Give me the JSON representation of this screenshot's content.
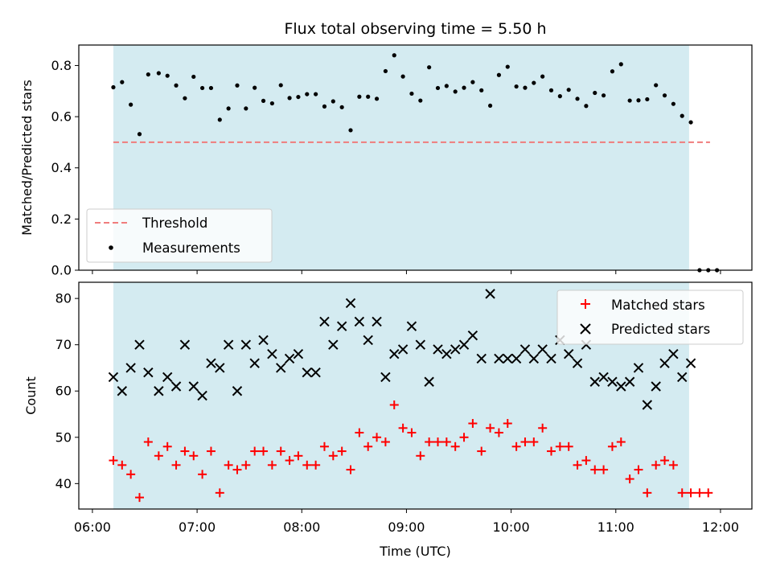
{
  "chart_data": [
    {
      "type": "scatter",
      "title": "Flux total observing time = 5.50 h",
      "xlabel": "",
      "ylabel": "Matched/Predicted stars",
      "ylim": [
        0.0,
        0.88
      ],
      "yticks": [
        "0.0",
        "0.2",
        "0.4",
        "0.6",
        "0.8"
      ],
      "ytick_values": [
        0.0,
        0.2,
        0.4,
        0.6,
        0.8
      ],
      "xlim_hours": [
        5.87,
        12.3
      ],
      "shaded_span_hours": [
        6.2,
        11.7
      ],
      "threshold": {
        "name": "Threshold",
        "value": 0.5,
        "x_range_hours": [
          6.2,
          11.9
        ],
        "color": "#f07c7c"
      },
      "series": [
        {
          "name": "Measurements",
          "color": "#000000",
          "x": [
            "06:12",
            "06:17",
            "06:22",
            "06:27",
            "06:32",
            "06:38",
            "06:43",
            "06:48",
            "06:53",
            "06:58",
            "07:03",
            "07:08",
            "07:13",
            "07:18",
            "07:23",
            "07:28",
            "07:33",
            "07:38",
            "07:43",
            "07:48",
            "07:53",
            "07:58",
            "08:03",
            "08:08",
            "08:13",
            "08:18",
            "08:23",
            "08:28",
            "08:33",
            "08:38",
            "08:43",
            "08:48",
            "08:53",
            "08:58",
            "09:03",
            "09:08",
            "09:13",
            "09:18",
            "09:23",
            "09:28",
            "09:33",
            "09:38",
            "09:43",
            "09:48",
            "09:53",
            "09:58",
            "10:03",
            "10:08",
            "10:13",
            "10:18",
            "10:23",
            "10:28",
            "10:33",
            "10:38",
            "10:43",
            "10:48",
            "10:53",
            "10:58",
            "11:03",
            "11:08",
            "11:13",
            "11:18",
            "11:23",
            "11:28",
            "11:33",
            "11:38",
            "11:43",
            "11:48",
            "11:53"
          ],
          "values": [
            0.715,
            0.735,
            0.647,
            0.532,
            0.765,
            0.77,
            0.76,
            0.722,
            0.672,
            0.756,
            0.712,
            0.712,
            0.588,
            0.632,
            0.722,
            0.632,
            0.713,
            0.662,
            0.652,
            0.723,
            0.673,
            0.677,
            0.688,
            0.688,
            0.64,
            0.66,
            0.637,
            0.547,
            0.678,
            0.678,
            0.67,
            0.778,
            0.84,
            0.757,
            0.69,
            0.663,
            0.793,
            0.712,
            0.72,
            0.698,
            0.713,
            0.735,
            0.703,
            0.643,
            0.763,
            0.795,
            0.718,
            0.713,
            0.732,
            0.757,
            0.703,
            0.68,
            0.705,
            0.67,
            0.642,
            0.693,
            0.683,
            0.777,
            0.805,
            0.663,
            0.664,
            0.668,
            0.723,
            0.683,
            0.65,
            0.603,
            0.578,
            0.0,
            0.0
          ]
        }
      ],
      "extra_points": {
        "x": [
          "11:58"
        ],
        "values": [
          0.0
        ]
      },
      "legend": {
        "position": "lower left",
        "entries": [
          "Threshold",
          "Measurements"
        ]
      }
    },
    {
      "type": "scatter",
      "title": "",
      "xlabel": "Time (UTC)",
      "ylabel": "Count",
      "ylim": [
        34.5,
        83.5
      ],
      "yticks": [
        "40",
        "50",
        "60",
        "70",
        "80"
      ],
      "ytick_values": [
        40,
        50,
        60,
        70,
        80
      ],
      "xticks": [
        "06:00",
        "07:00",
        "08:00",
        "09:00",
        "10:00",
        "11:00",
        "12:00"
      ],
      "xtick_hours": [
        6,
        7,
        8,
        9,
        10,
        11,
        12
      ],
      "xlim_hours": [
        5.87,
        12.3
      ],
      "shaded_span_hours": [
        6.2,
        11.7
      ],
      "series": [
        {
          "name": "Matched stars",
          "color": "#ff0000",
          "marker": "+",
          "x": [
            "06:12",
            "06:17",
            "06:22",
            "06:27",
            "06:32",
            "06:38",
            "06:43",
            "06:48",
            "06:53",
            "06:58",
            "07:03",
            "07:08",
            "07:13",
            "07:18",
            "07:23",
            "07:28",
            "07:33",
            "07:38",
            "07:43",
            "07:48",
            "07:53",
            "07:58",
            "08:03",
            "08:08",
            "08:13",
            "08:18",
            "08:23",
            "08:28",
            "08:33",
            "08:38",
            "08:43",
            "08:48",
            "08:53",
            "08:58",
            "09:03",
            "09:08",
            "09:13",
            "09:18",
            "09:23",
            "09:28",
            "09:33",
            "09:38",
            "09:43",
            "09:48",
            "09:53",
            "09:58",
            "10:03",
            "10:08",
            "10:13",
            "10:18",
            "10:23",
            "10:28",
            "10:33",
            "10:38",
            "10:43",
            "10:48",
            "10:53",
            "10:58",
            "11:03",
            "11:08",
            "11:13",
            "11:18",
            "11:23",
            "11:28",
            "11:33",
            "11:38",
            "11:43",
            "11:48",
            "11:53"
          ],
          "values": [
            45,
            44,
            42,
            37,
            49,
            46,
            48,
            44,
            47,
            46,
            42,
            47,
            38,
            44,
            43,
            44,
            47,
            47,
            44,
            47,
            45,
            46,
            44,
            44,
            48,
            46,
            47,
            43,
            51,
            48,
            50,
            49,
            57,
            52,
            51,
            46,
            49,
            49,
            49,
            48,
            50,
            53,
            47,
            52,
            51,
            53,
            48,
            49,
            49,
            52,
            47,
            48,
            48,
            44,
            45,
            43,
            43,
            48,
            49,
            41,
            43,
            38,
            44,
            45,
            44,
            38,
            38,
            38,
            38
          ]
        },
        {
          "name": "Predicted stars",
          "color": "#000000",
          "marker": "x",
          "x": [
            "06:12",
            "06:17",
            "06:22",
            "06:27",
            "06:32",
            "06:38",
            "06:43",
            "06:48",
            "06:53",
            "06:58",
            "07:03",
            "07:08",
            "07:13",
            "07:18",
            "07:23",
            "07:28",
            "07:33",
            "07:38",
            "07:43",
            "07:48",
            "07:53",
            "07:58",
            "08:03",
            "08:08",
            "08:13",
            "08:18",
            "08:23",
            "08:28",
            "08:33",
            "08:38",
            "08:43",
            "08:48",
            "08:53",
            "08:58",
            "09:03",
            "09:08",
            "09:13",
            "09:18",
            "09:23",
            "09:28",
            "09:33",
            "09:38",
            "09:43",
            "09:48",
            "09:53",
            "09:58",
            "10:03",
            "10:08",
            "10:13",
            "10:18",
            "10:23",
            "10:28",
            "10:33",
            "10:38",
            "10:43",
            "10:48",
            "10:53",
            "10:58",
            "11:03",
            "11:08",
            "11:13",
            "11:18",
            "11:23",
            "11:28",
            "11:33",
            "11:38",
            "11:43"
          ],
          "values": [
            63,
            60,
            65,
            70,
            64,
            60,
            63,
            61,
            70,
            61,
            59,
            66,
            65,
            70,
            60,
            70,
            66,
            71,
            68,
            65,
            67,
            68,
            64,
            64,
            75,
            70,
            74,
            79,
            75,
            71,
            75,
            63,
            68,
            69,
            74,
            70,
            62,
            69,
            68,
            69,
            70,
            72,
            67,
            81,
            67,
            67,
            67,
            69,
            67,
            69,
            67,
            71,
            68,
            66,
            70,
            62,
            63,
            62,
            61,
            62,
            65,
            57,
            61,
            66,
            68,
            63,
            66
          ]
        }
      ],
      "legend": {
        "position": "upper right",
        "entries": [
          "Matched stars",
          "Predicted stars"
        ]
      }
    }
  ]
}
